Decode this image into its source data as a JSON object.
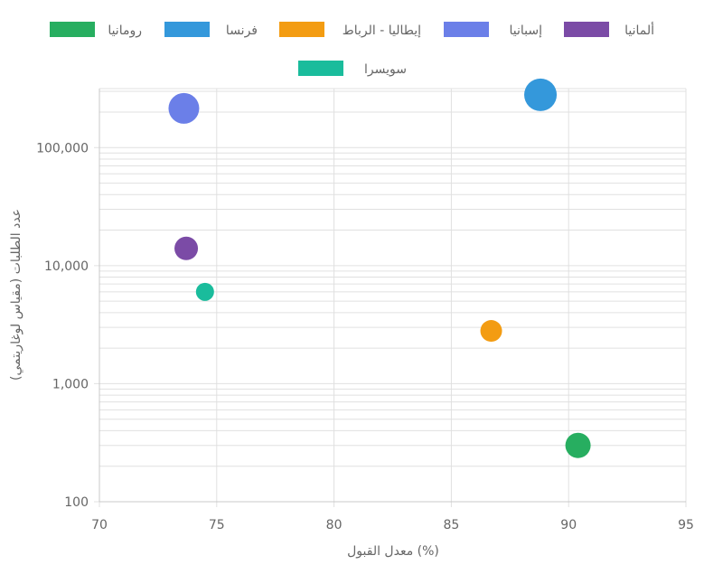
{
  "chart_data": {
    "type": "scatter",
    "title": "",
    "xlabel": "معدل القبول (%)",
    "ylabel": "عدد الطلبات (مقياس لوغاريتمي)",
    "x_ticks": [
      "70",
      "75",
      "80",
      "85",
      "90",
      "95"
    ],
    "y_ticks": [
      "100",
      "1,000",
      "10,000",
      "100,000"
    ],
    "xlim": [
      70,
      95
    ],
    "ylim_log10": [
      2,
      5.5
    ],
    "legend_position": "top",
    "series": [
      {
        "name": "رومانيا",
        "color": "#27ae60",
        "x": 90.4,
        "y": 300,
        "r": 14
      },
      {
        "name": "فرنسا",
        "color": "#3498db",
        "x": 88.8,
        "y": 280000,
        "r": 18
      },
      {
        "name": "إيطاليا - الرباط",
        "color": "#f39c12",
        "x": 86.7,
        "y": 2800,
        "r": 12
      },
      {
        "name": "إسبانيا",
        "color": "#6b7fe8",
        "x": 73.6,
        "y": 215000,
        "r": 17
      },
      {
        "name": "ألمانيا",
        "color": "#7b4ba6",
        "x": 73.7,
        "y": 14000,
        "r": 13
      },
      {
        "name": "سويسرا",
        "color": "#1abc9c",
        "x": 74.5,
        "y": 6000,
        "r": 10
      }
    ]
  }
}
